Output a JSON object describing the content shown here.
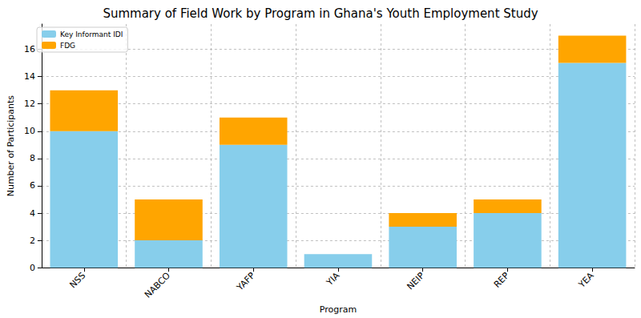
{
  "chart_data": {
    "type": "bar",
    "title": "Summary of Field Work by Program in Ghana's Youth Employment Study",
    "x_label": "Program",
    "y_label": "Number of Participants",
    "categories": [
      "NSS",
      "NABCO",
      "YAFP",
      "YIA",
      "NEIP",
      "REP",
      "YEA"
    ],
    "series": [
      {
        "name": "Key Informant IDI",
        "color": "#87ceeb",
        "values": [
          10,
          2,
          9,
          1,
          3,
          4,
          15
        ]
      },
      {
        "name": "FDG",
        "color": "#ffa500",
        "values": [
          3,
          3,
          2,
          0,
          1,
          1,
          2
        ]
      }
    ],
    "stacked": true,
    "ylim": [
      0,
      17.85
    ],
    "yticks": [
      0,
      2,
      4,
      6,
      8,
      10,
      12,
      14,
      16
    ],
    "grid": true,
    "legend": "top-left"
  }
}
